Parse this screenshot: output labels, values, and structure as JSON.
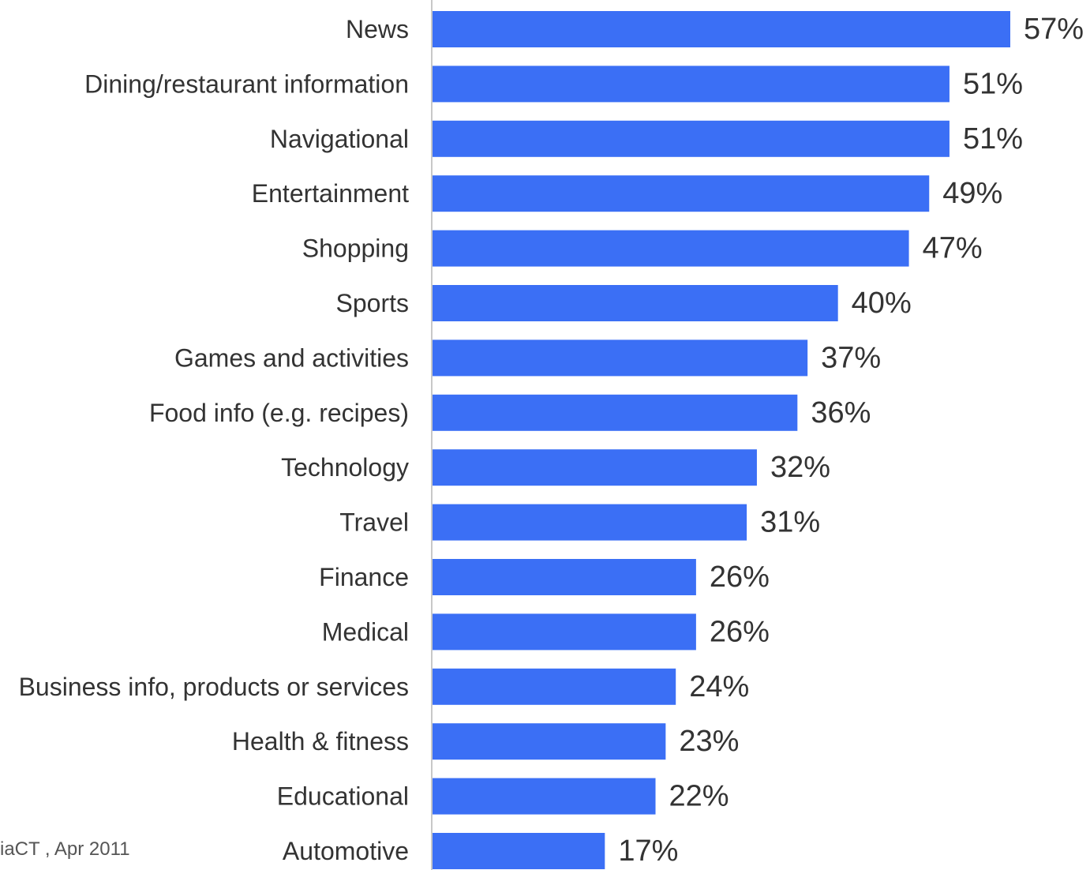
{
  "chart_data": {
    "type": "bar",
    "orientation": "horizontal",
    "categories": [
      "News",
      "Dining/restaurant information",
      "Navigational",
      "Entertainment",
      "Shopping",
      "Sports",
      "Games and activities",
      "Food info (e.g. recipes)",
      "Technology",
      "Travel",
      "Finance",
      "Medical",
      "Business info, products or services",
      "Health & fitness",
      "Educational",
      "Automotive"
    ],
    "values": [
      57,
      51,
      51,
      49,
      47,
      40,
      37,
      36,
      32,
      31,
      26,
      26,
      24,
      23,
      22,
      17
    ],
    "value_labels": [
      "57%",
      "51%",
      "51%",
      "49%",
      "47%",
      "40%",
      "37%",
      "36%",
      "32%",
      "31%",
      "26%",
      "26%",
      "24%",
      "23%",
      "22%",
      "17%"
    ],
    "unit": "%",
    "xlim": [
      0,
      57
    ],
    "grid": false,
    "legend": "none",
    "bar_color": "#3b6ff5",
    "axis_color": "#c8c8c8"
  },
  "source_note": "iaCT , Apr 2011"
}
